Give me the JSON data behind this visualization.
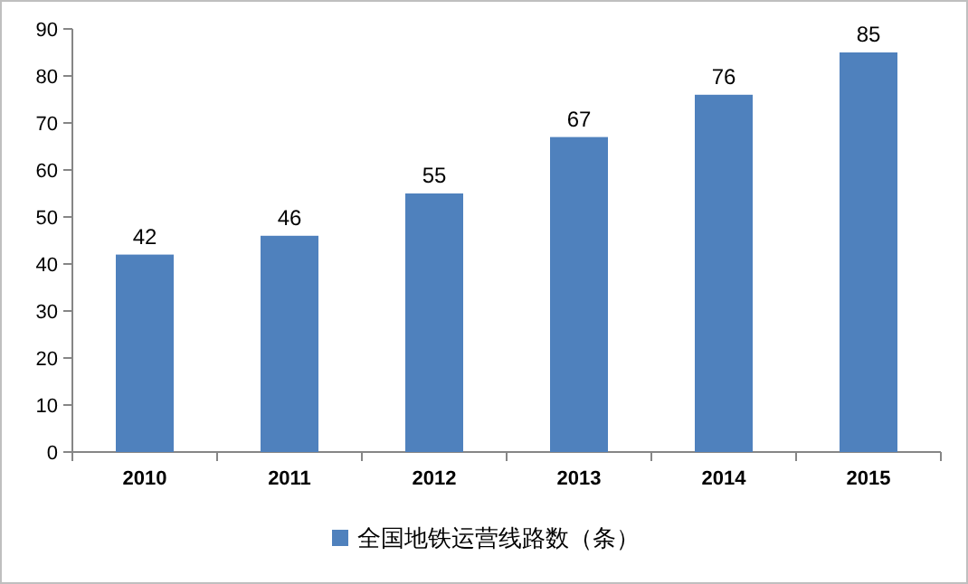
{
  "chart_data": {
    "type": "bar",
    "categories": [
      "2010",
      "2011",
      "2012",
      "2013",
      "2014",
      "2015"
    ],
    "series": [
      {
        "name": "全国地铁运营线路数（条）",
        "color": "#4f81bd",
        "values": [
          42,
          46,
          55,
          67,
          76,
          85
        ]
      }
    ],
    "ylim": [
      0,
      90
    ],
    "yticks": [
      0,
      10,
      20,
      30,
      40,
      50,
      60,
      70,
      80,
      90
    ],
    "data_labels": true,
    "legend": "bottom",
    "grid": false
  }
}
